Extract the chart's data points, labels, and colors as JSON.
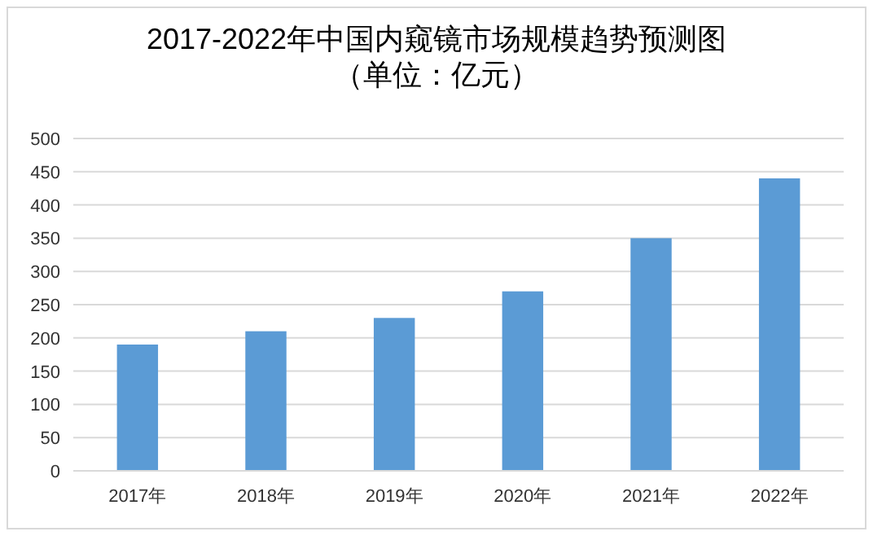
{
  "chart_data": {
    "type": "bar",
    "title": "2017-2022年中国内窥镜市场规模趋势预测图",
    "subtitle": "（单位：亿元）",
    "categories": [
      "2017年",
      "2018年",
      "2019年",
      "2020年",
      "2021年",
      "2022年"
    ],
    "values": [
      190,
      210,
      230,
      270,
      350,
      440
    ],
    "color": "#5b9bd5",
    "ylim": [
      0,
      500
    ],
    "yticks": [
      0,
      50,
      100,
      150,
      200,
      250,
      300,
      350,
      400,
      450,
      500
    ],
    "grid": "y"
  }
}
